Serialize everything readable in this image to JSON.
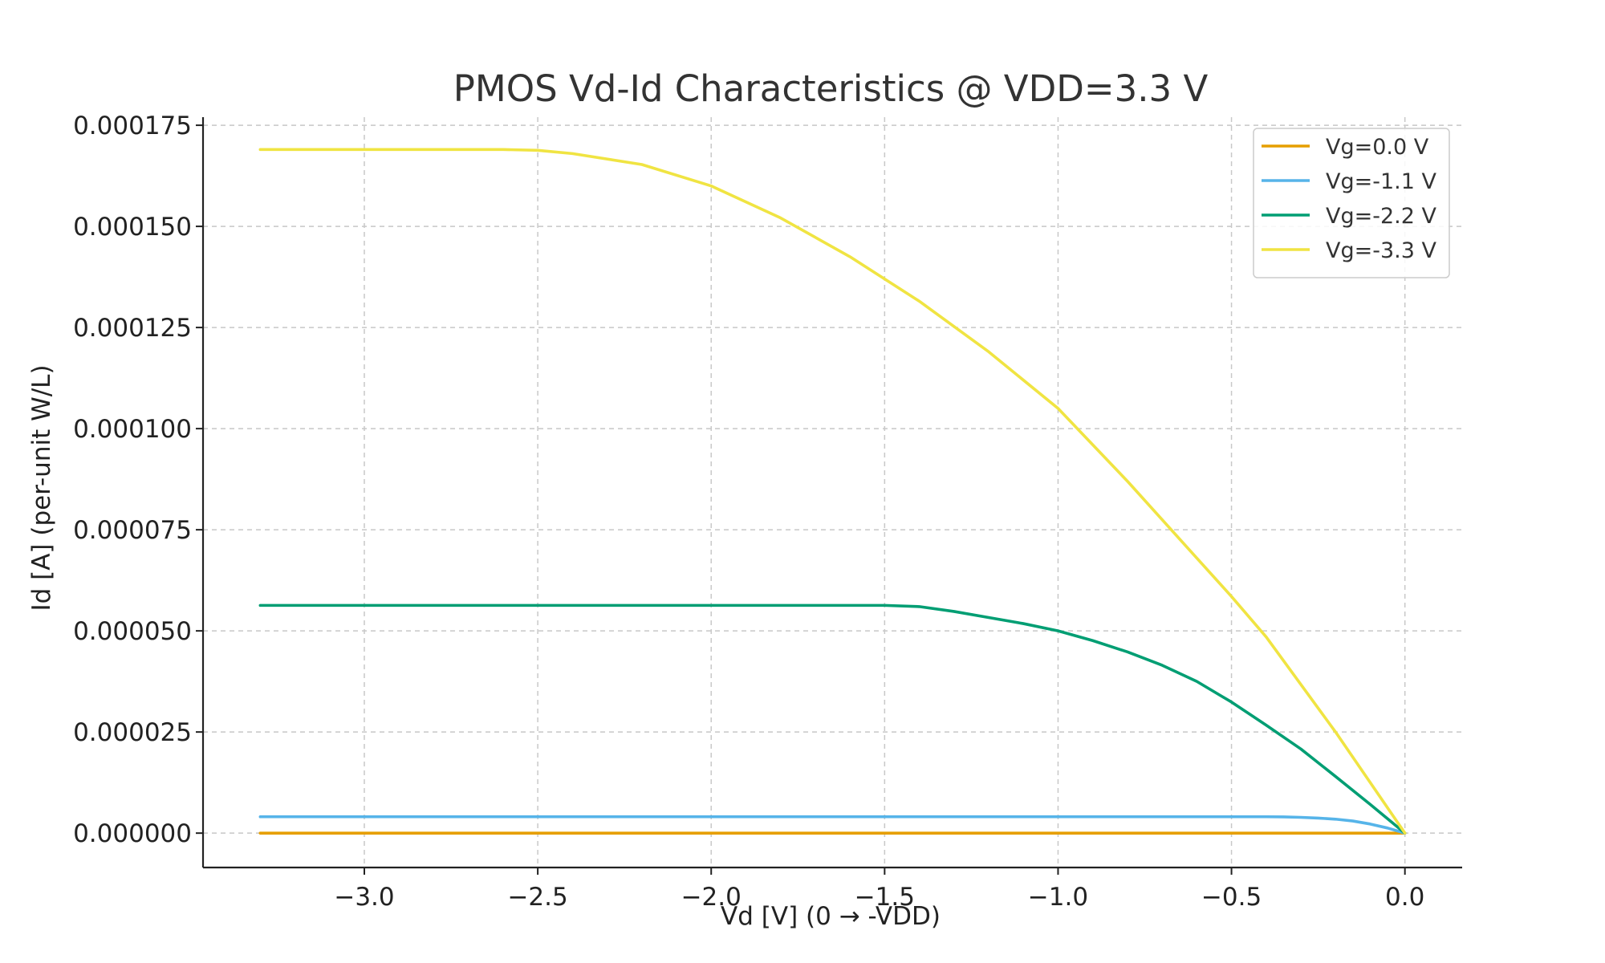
{
  "chart_data": {
    "type": "line",
    "title": "PMOS Vd-Id Characteristics @ VDD=3.3 V",
    "xlabel": "Vd [V] (0 → -VDD)",
    "ylabel": "Id [A] (per-unit W/L)",
    "xlim": [
      -3.465,
      0.165
    ],
    "ylim": [
      -8.5e-06,
      0.000177
    ],
    "x_ticks": [
      -3.0,
      -2.5,
      -2.0,
      -1.5,
      -1.0,
      -0.5,
      0.0
    ],
    "x_tick_labels": [
      "−3.0",
      "−2.5",
      "−2.0",
      "−1.5",
      "−1.0",
      "−0.5",
      "0.0"
    ],
    "y_ticks": [
      0.0,
      2.5e-05,
      5e-05,
      7.5e-05,
      0.0001,
      0.000125,
      0.00015,
      0.000175
    ],
    "y_tick_labels": [
      "0.000000",
      "0.000025",
      "0.000050",
      "0.000075",
      "0.000100",
      "0.000125",
      "0.000150",
      "0.000175"
    ],
    "grid": true,
    "legend_position": "top-right",
    "series": [
      {
        "name": "Vg=0.0 V",
        "color": "#E69F00",
        "x": [
          -3.3,
          -3.0,
          -2.5,
          -2.0,
          -1.5,
          -1.0,
          -0.5,
          0.0
        ],
        "y": [
          0.0,
          0.0,
          0.0,
          0.0,
          0.0,
          0.0,
          0.0,
          0.0
        ]
      },
      {
        "name": "Vg=-1.1 V",
        "color": "#56B4E9",
        "x": [
          -3.3,
          -3.0,
          -2.5,
          -2.0,
          -1.5,
          -1.0,
          -0.5,
          -0.4,
          -0.35,
          -0.3,
          -0.25,
          -0.2,
          -0.15,
          -0.1,
          -0.05,
          0.0
        ],
        "y": [
          4.05e-06,
          4.05e-06,
          4.05e-06,
          4.05e-06,
          4.05e-06,
          4.05e-06,
          4.05e-06,
          4.05e-06,
          4.01e-06,
          3.9e-06,
          3.72e-06,
          3.45e-06,
          3e-06,
          2.25e-06,
          1.26e-06,
          0.0
        ]
      },
      {
        "name": "Vg=-2.2 V",
        "color": "#009E73",
        "x": [
          -3.3,
          -3.0,
          -2.5,
          -2.0,
          -1.5,
          -1.4,
          -1.3,
          -1.2,
          -1.1,
          -1.0,
          -0.9,
          -0.8,
          -0.7,
          -0.6,
          -0.5,
          -0.4,
          -0.3,
          -0.2,
          -0.1,
          0.0
        ],
        "y": [
          5.63e-05,
          5.63e-05,
          5.63e-05,
          5.63e-05,
          5.63e-05,
          5.6e-05,
          5.48e-05,
          5.33e-05,
          5.18e-05,
          5e-05,
          4.76e-05,
          4.48e-05,
          4.15e-05,
          3.75e-05,
          3.24e-05,
          2.67e-05,
          2.08e-05,
          1.4e-05,
          7.1e-06,
          0.0
        ]
      },
      {
        "name": "Vg=-3.3 V",
        "color": "#F0E442",
        "x": [
          -3.3,
          -3.0,
          -2.6,
          -2.5,
          -2.4,
          -2.2,
          -2.0,
          -1.8,
          -1.6,
          -1.4,
          -1.2,
          -1.0,
          -0.8,
          -0.6,
          -0.5,
          -0.4,
          -0.2,
          0.0
        ],
        "y": [
          0.000169,
          0.000169,
          0.000169,
          0.0001688,
          0.000168,
          0.0001653,
          0.00016,
          0.0001521,
          0.0001425,
          0.0001315,
          0.000119,
          0.000105,
          8.7e-05,
          6.8e-05,
          5.85e-05,
          4.85e-05,
          2.5e-05,
          0.0
        ]
      }
    ]
  }
}
